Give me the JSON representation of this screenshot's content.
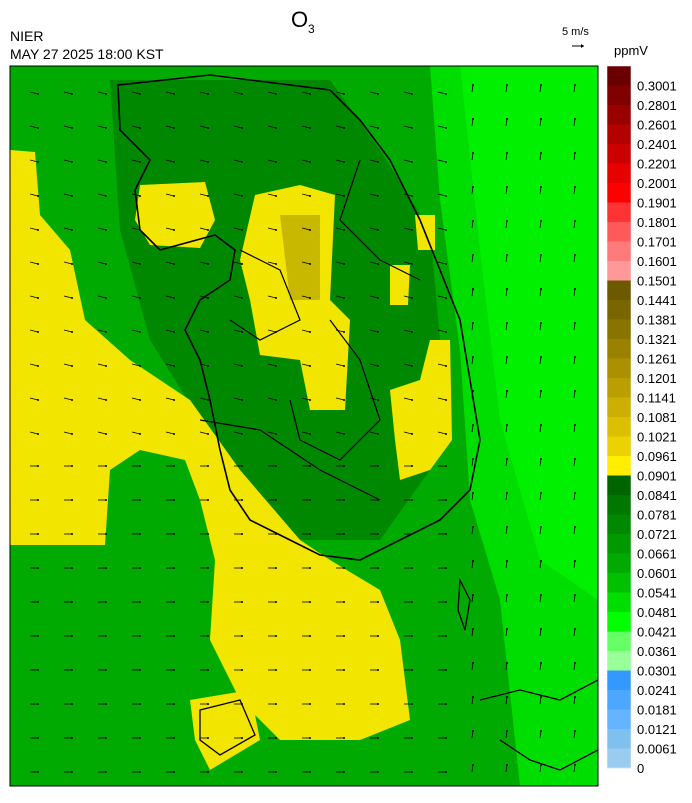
{
  "header": {
    "title_base": "O",
    "title_subscript": "3",
    "agency": "NIER",
    "timestamp": "MAY 27 2025 18:00 KST",
    "wind_scale": "5 m/s",
    "unit": "ppmV"
  },
  "colorbar": [
    {
      "label": "0.3001",
      "color": "#6b0000"
    },
    {
      "label": "0.2801",
      "color": "#800000"
    },
    {
      "label": "0.2601",
      "color": "#990000"
    },
    {
      "label": "0.2401",
      "color": "#b30000"
    },
    {
      "label": "0.2201",
      "color": "#cc0000"
    },
    {
      "label": "0.2001",
      "color": "#e60000"
    },
    {
      "label": "0.1901",
      "color": "#ff0000"
    },
    {
      "label": "0.1801",
      "color": "#ff3333"
    },
    {
      "label": "0.1701",
      "color": "#ff5a5a"
    },
    {
      "label": "0.1601",
      "color": "#ff7a7a"
    },
    {
      "label": "0.1501",
      "color": "#ff9999"
    },
    {
      "label": "0.1441",
      "color": "#6b5a00"
    },
    {
      "label": "0.1381",
      "color": "#7a6600"
    },
    {
      "label": "0.1321",
      "color": "#8a7400"
    },
    {
      "label": "0.1261",
      "color": "#9a8200"
    },
    {
      "label": "0.1201",
      "color": "#ab9000"
    },
    {
      "label": "0.1141",
      "color": "#bb9f00"
    },
    {
      "label": "0.1081",
      "color": "#ccaf00"
    },
    {
      "label": "0.1021",
      "color": "#dcc000"
    },
    {
      "label": "0.0961",
      "color": "#ecd200"
    },
    {
      "label": "0.0901",
      "color": "#ffee00"
    },
    {
      "label": "0.0841",
      "color": "#006400"
    },
    {
      "label": "0.0781",
      "color": "#007800"
    },
    {
      "label": "0.0721",
      "color": "#008800"
    },
    {
      "label": "0.0661",
      "color": "#009a00"
    },
    {
      "label": "0.0601",
      "color": "#00aa00"
    },
    {
      "label": "0.0541",
      "color": "#00c000"
    },
    {
      "label": "0.0481",
      "color": "#00dd00"
    },
    {
      "label": "0.0421",
      "color": "#00ff00"
    },
    {
      "label": "0.0361",
      "color": "#66ff66"
    },
    {
      "label": "0.0301",
      "color": "#99ff99"
    },
    {
      "label": "0.0241",
      "color": "#3399ff"
    },
    {
      "label": "0.0181",
      "color": "#4da6ff"
    },
    {
      "label": "0.0121",
      "color": "#66b3ff"
    },
    {
      "label": "0.0061",
      "color": "#80c0ef"
    },
    {
      "label": "0",
      "color": "#99ccee"
    }
  ]
}
